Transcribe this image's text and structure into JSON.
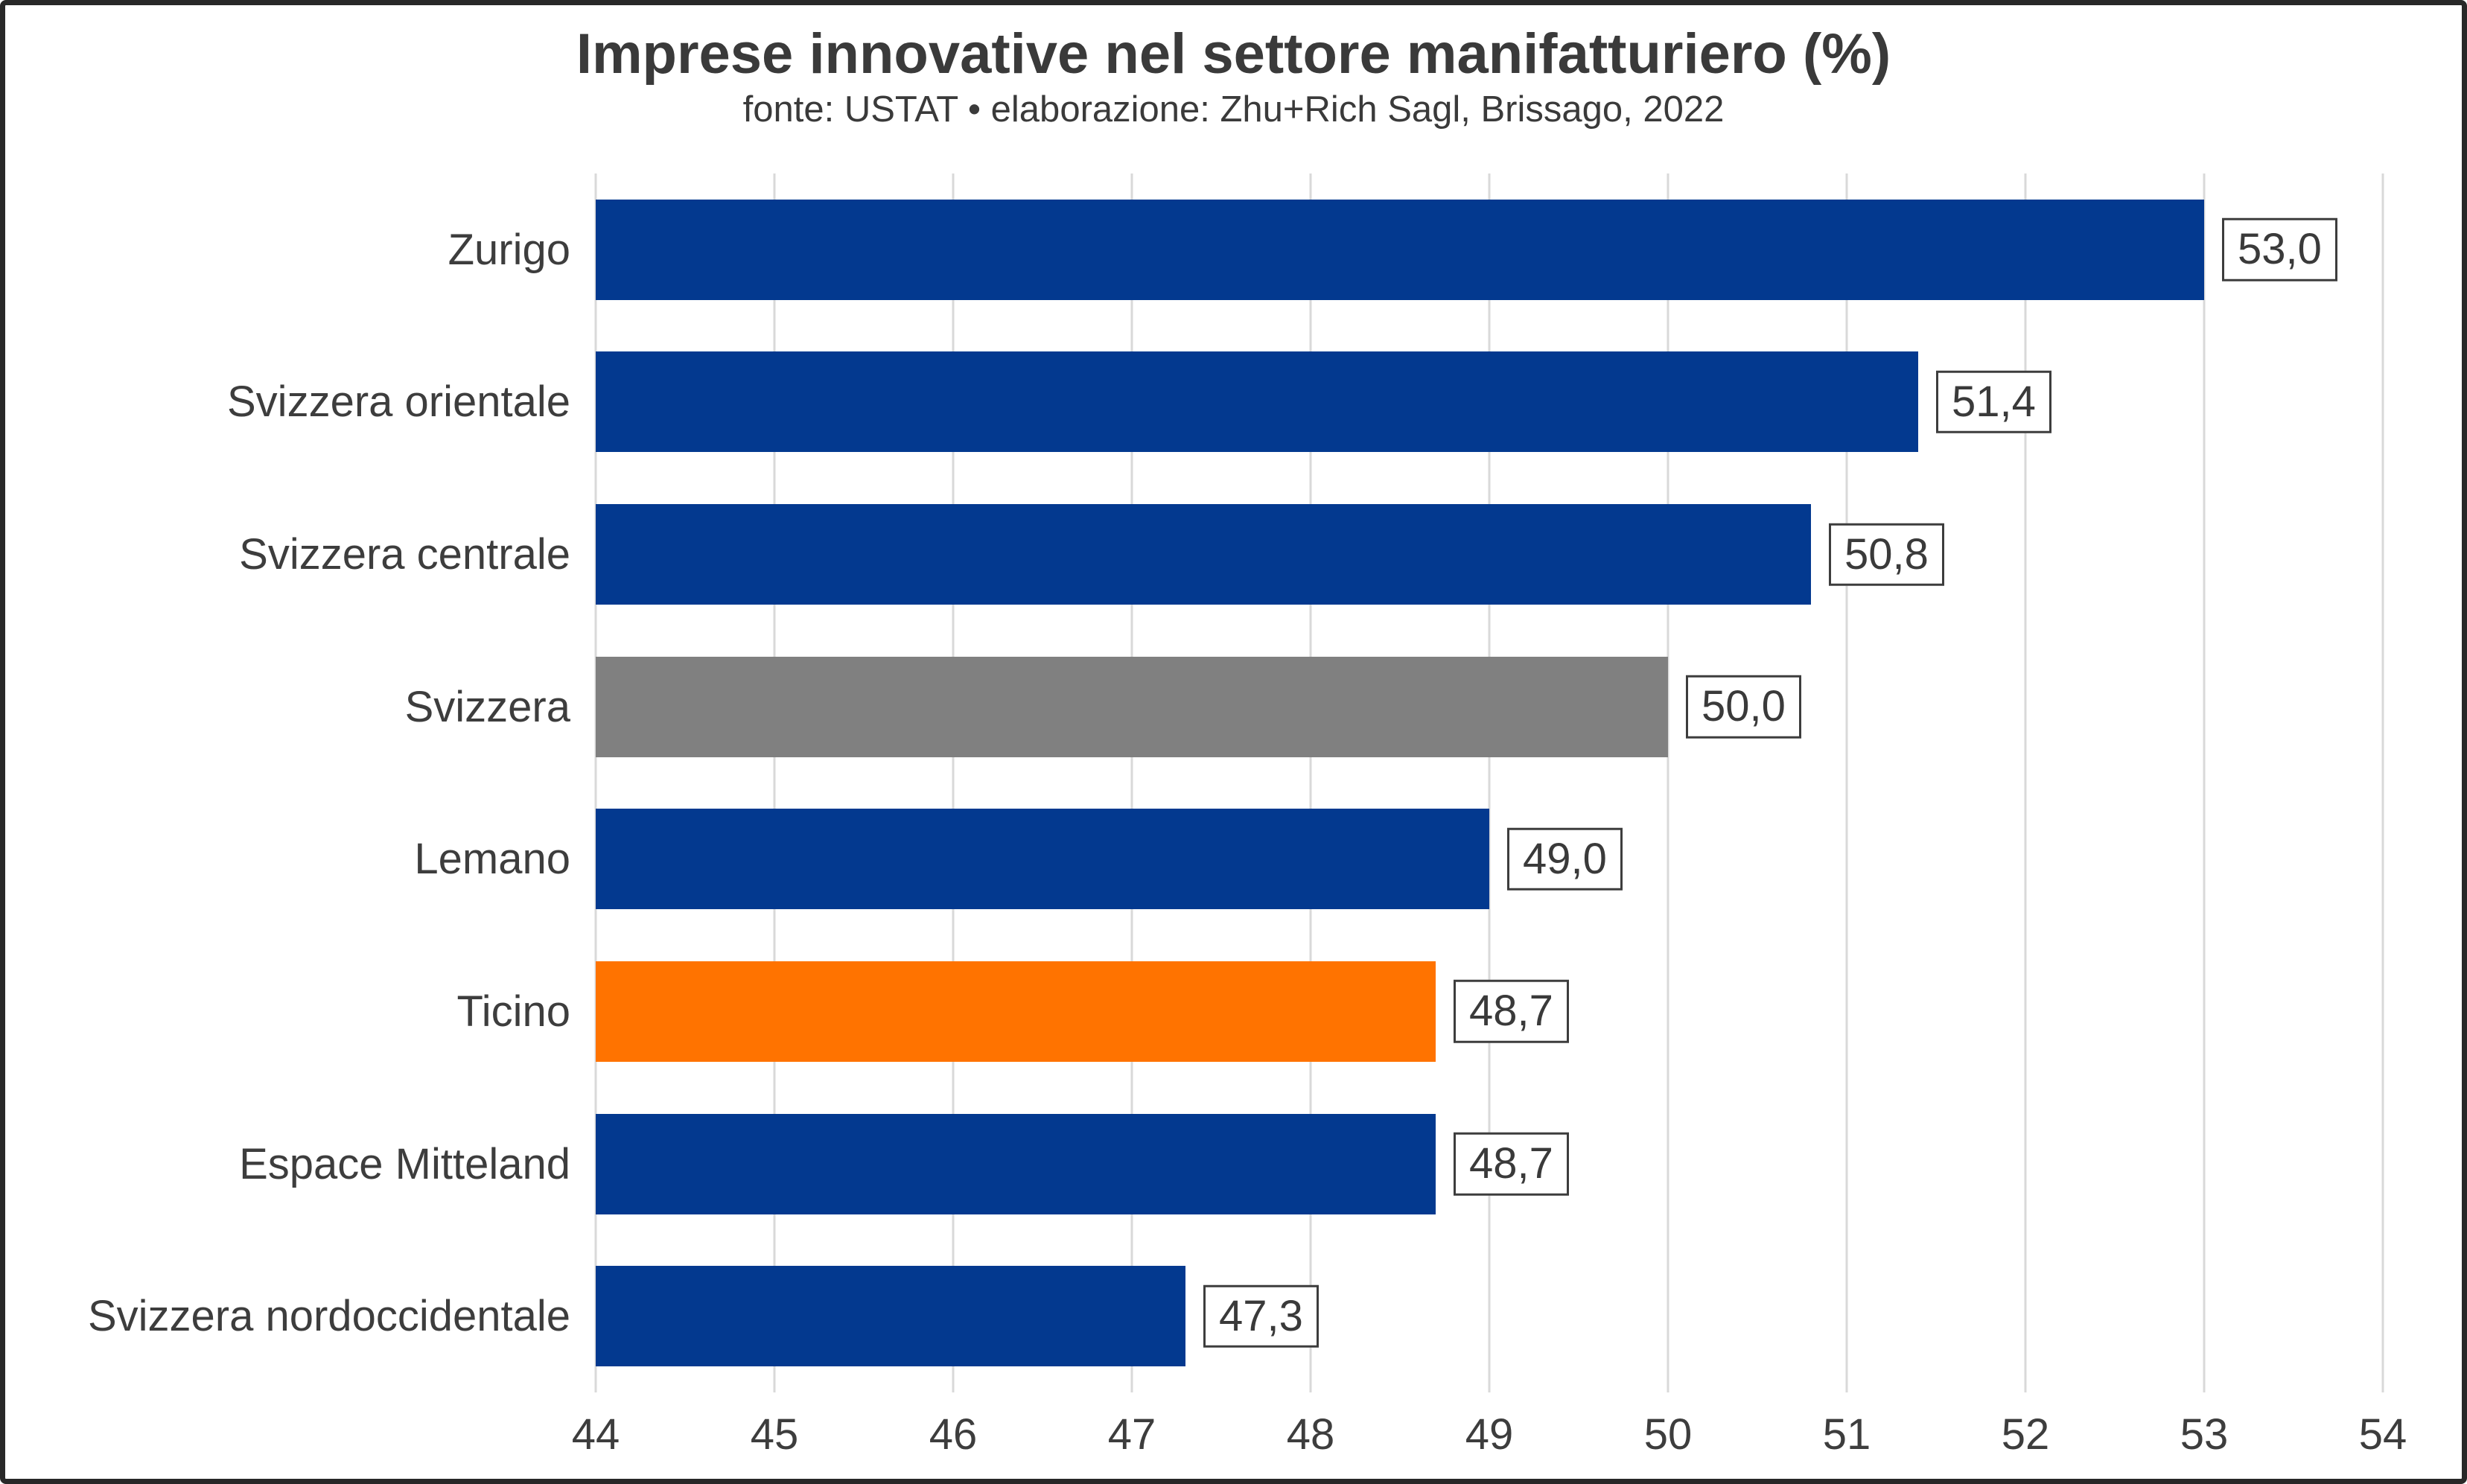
{
  "chart": {
    "title": "Imprese innovative nel settore manifatturiero (%)",
    "subtitle": "fonte: USTAT • elaborazione: Zhu+Rich Sagl, Brissago, 2022"
  },
  "chart_data": {
    "type": "bar",
    "orientation": "horizontal",
    "title": "Imprese innovative nel settore manifatturiero (%)",
    "subtitle": "fonte: USTAT • elaborazione: Zhu+Rich Sagl, Brissago, 2022",
    "categories": [
      "Zurigo",
      "Svizzera orientale",
      "Svizzera centrale",
      "Svizzera",
      "Lemano",
      "Ticino",
      "Espace Mitteland",
      "Svizzera nordoccidentale"
    ],
    "values": [
      53.0,
      51.4,
      50.8,
      50.0,
      49.0,
      48.7,
      48.7,
      47.3
    ],
    "value_labels": [
      "53,0",
      "51,4",
      "50,8",
      "50,0",
      "49,0",
      "48,7",
      "48,7",
      "47,3"
    ],
    "bar_colors": [
      "#03398f",
      "#03398f",
      "#03398f",
      "#808080",
      "#03398f",
      "#ff7300",
      "#03398f",
      "#03398f"
    ],
    "xlim": [
      44,
      54
    ],
    "x_ticks": [
      "44",
      "45",
      "46",
      "47",
      "48",
      "49",
      "50",
      "51",
      "52",
      "53",
      "54"
    ],
    "xlabel": "",
    "ylabel": "",
    "grid": "vertical",
    "legend": "none",
    "colors": {
      "default_bar": "#03398f",
      "highlight_bar": "#ff7300",
      "reference_bar": "#808080",
      "gridline": "#d9d9d9",
      "text": "#3a3a3a",
      "value_box_border": "#3d3d3d",
      "frame_border": "#282828",
      "background": "#ffffff"
    }
  }
}
